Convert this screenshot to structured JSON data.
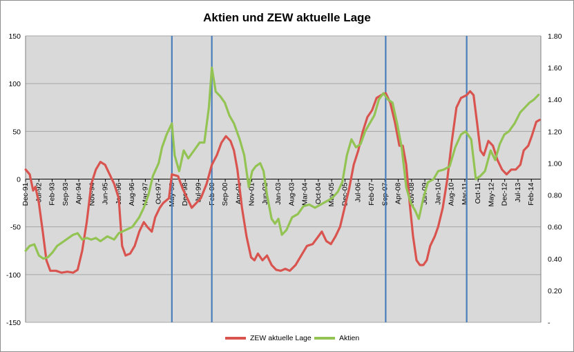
{
  "chart_data": {
    "type": "line",
    "title": "Aktien und ZEW aktuelle Lage",
    "xlabel": "",
    "ylabel": "",
    "y_left": {
      "range": [
        -150,
        150
      ],
      "ticks": [
        150,
        100,
        50,
        0,
        -50,
        -100,
        -150
      ],
      "tick_labels": [
        "150",
        "100",
        "50",
        "0",
        "-50",
        "-100",
        "-150"
      ]
    },
    "y_right": {
      "range": [
        0,
        1.8
      ],
      "ticks": [
        1.8,
        1.6,
        1.4,
        1.2,
        1.0,
        0.8,
        0.6,
        0.4,
        0.2,
        0
      ],
      "tick_labels": [
        "1.80",
        "1.60",
        "1.40",
        "1.20",
        "1.00",
        "0.80",
        "0.60",
        "0.40",
        "0.20",
        "-"
      ]
    },
    "x_range": [
      1991.917,
      2014.5
    ],
    "x_tick_labels": [
      {
        "label": "Dec-91",
        "x": 1991.917
      },
      {
        "label": "Jul-92",
        "x": 1992.5
      },
      {
        "label": "Feb-93",
        "x": 1993.083
      },
      {
        "label": "Sep-93",
        "x": 1993.667
      },
      {
        "label": "Apr-94",
        "x": 1994.25
      },
      {
        "label": "Nov-94",
        "x": 1994.833
      },
      {
        "label": "Jun-95",
        "x": 1995.417
      },
      {
        "label": "Jan-96",
        "x": 1996.0
      },
      {
        "label": "Aug-96",
        "x": 1996.583
      },
      {
        "label": "Mar-97",
        "x": 1997.167
      },
      {
        "label": "Oct-97",
        "x": 1997.75
      },
      {
        "label": "May-98",
        "x": 1998.333
      },
      {
        "label": "Dec-98",
        "x": 1998.917
      },
      {
        "label": "Jul-99",
        "x": 1999.5
      },
      {
        "label": "Feb-00",
        "x": 2000.083
      },
      {
        "label": "Sep-00",
        "x": 2000.667
      },
      {
        "label": "Apr-01",
        "x": 2001.25
      },
      {
        "label": "Nov-01",
        "x": 2001.833
      },
      {
        "label": "Jun-02",
        "x": 2002.417
      },
      {
        "label": "Jan-03",
        "x": 2003.0
      },
      {
        "label": "Aug-03",
        "x": 2003.583
      },
      {
        "label": "Mar-04",
        "x": 2004.167
      },
      {
        "label": "Oct-04",
        "x": 2004.75
      },
      {
        "label": "May-05",
        "x": 2005.333
      },
      {
        "label": "Dec-05",
        "x": 2005.917
      },
      {
        "label": "Jul-06",
        "x": 2006.5
      },
      {
        "label": "Feb-07",
        "x": 2007.083
      },
      {
        "label": "Sep-07",
        "x": 2007.667
      },
      {
        "label": "Apr-08",
        "x": 2008.25
      },
      {
        "label": "Nov-08",
        "x": 2008.833
      },
      {
        "label": "Jun-09",
        "x": 2009.417
      },
      {
        "label": "Jan-10",
        "x": 2010.0
      },
      {
        "label": "Aug-10",
        "x": 2010.583
      },
      {
        "label": "Mar-11",
        "x": 2011.167
      },
      {
        "label": "Oct-11",
        "x": 2011.75
      },
      {
        "label": "May-12",
        "x": 2012.333
      },
      {
        "label": "Dec-12",
        "x": 2012.917
      },
      {
        "label": "Jul-13",
        "x": 2013.5
      },
      {
        "label": "Feb-14",
        "x": 2014.083
      }
    ],
    "vertical_markers": [
      1998.33,
      2000.08,
      2007.7,
      2011.25
    ],
    "marker_color": "#4a7ebb",
    "grid": true,
    "legend": "bottom",
    "series": [
      {
        "name": "ZEW aktuelle Lage",
        "axis": "left",
        "color": "#d9534f",
        "points": [
          [
            1991.92,
            10
          ],
          [
            1992.1,
            5
          ],
          [
            1992.25,
            -12
          ],
          [
            1992.35,
            -8
          ],
          [
            1992.5,
            -25
          ],
          [
            1992.67,
            -55
          ],
          [
            1992.83,
            -85
          ],
          [
            1993.0,
            -96
          ],
          [
            1993.25,
            -96
          ],
          [
            1993.5,
            -98
          ],
          [
            1993.75,
            -97
          ],
          [
            1994.0,
            -98
          ],
          [
            1994.2,
            -95
          ],
          [
            1994.4,
            -75
          ],
          [
            1994.6,
            -45
          ],
          [
            1994.8,
            -5
          ],
          [
            1995.0,
            10
          ],
          [
            1995.2,
            18
          ],
          [
            1995.4,
            15
          ],
          [
            1995.6,
            5
          ],
          [
            1995.8,
            -5
          ],
          [
            1996.0,
            -20
          ],
          [
            1996.15,
            -70
          ],
          [
            1996.3,
            -80
          ],
          [
            1996.5,
            -78
          ],
          [
            1996.7,
            -70
          ],
          [
            1996.9,
            -55
          ],
          [
            1997.1,
            -45
          ],
          [
            1997.25,
            -50
          ],
          [
            1997.45,
            -55
          ],
          [
            1997.6,
            -40
          ],
          [
            1997.8,
            -30
          ],
          [
            1997.95,
            -25
          ],
          [
            1998.2,
            -20
          ],
          [
            1998.33,
            5
          ],
          [
            1998.6,
            3
          ],
          [
            1998.8,
            -10
          ],
          [
            1999.0,
            -20
          ],
          [
            1999.2,
            -30
          ],
          [
            1999.4,
            -25
          ],
          [
            1999.6,
            -20
          ],
          [
            1999.85,
            -5
          ],
          [
            2000.08,
            15
          ],
          [
            2000.3,
            25
          ],
          [
            2000.5,
            38
          ],
          [
            2000.7,
            45
          ],
          [
            2000.9,
            40
          ],
          [
            2001.05,
            30
          ],
          [
            2001.2,
            10
          ],
          [
            2001.4,
            -30
          ],
          [
            2001.6,
            -60
          ],
          [
            2001.8,
            -82
          ],
          [
            2001.95,
            -85
          ],
          [
            2002.1,
            -78
          ],
          [
            2002.3,
            -85
          ],
          [
            2002.5,
            -80
          ],
          [
            2002.7,
            -90
          ],
          [
            2002.9,
            -95
          ],
          [
            2003.1,
            -96
          ],
          [
            2003.3,
            -94
          ],
          [
            2003.5,
            -96
          ],
          [
            2003.75,
            -90
          ],
          [
            2004.0,
            -80
          ],
          [
            2004.25,
            -70
          ],
          [
            2004.5,
            -68
          ],
          [
            2004.75,
            -60
          ],
          [
            2004.9,
            -55
          ],
          [
            2005.1,
            -65
          ],
          [
            2005.3,
            -68
          ],
          [
            2005.5,
            -60
          ],
          [
            2005.7,
            -50
          ],
          [
            2005.9,
            -30
          ],
          [
            2006.1,
            -10
          ],
          [
            2006.3,
            15
          ],
          [
            2006.5,
            30
          ],
          [
            2006.7,
            50
          ],
          [
            2006.9,
            65
          ],
          [
            2007.1,
            72
          ],
          [
            2007.3,
            85
          ],
          [
            2007.5,
            88
          ],
          [
            2007.7,
            90
          ],
          [
            2007.9,
            80
          ],
          [
            2008.1,
            60
          ],
          [
            2008.3,
            35
          ],
          [
            2008.45,
            35
          ],
          [
            2008.6,
            15
          ],
          [
            2008.75,
            -25
          ],
          [
            2008.9,
            -60
          ],
          [
            2009.05,
            -85
          ],
          [
            2009.2,
            -90
          ],
          [
            2009.35,
            -90
          ],
          [
            2009.5,
            -85
          ],
          [
            2009.65,
            -70
          ],
          [
            2009.85,
            -60
          ],
          [
            2010.0,
            -50
          ],
          [
            2010.2,
            -30
          ],
          [
            2010.4,
            0
          ],
          [
            2010.6,
            40
          ],
          [
            2010.8,
            75
          ],
          [
            2011.0,
            85
          ],
          [
            2011.25,
            88
          ],
          [
            2011.4,
            92
          ],
          [
            2011.55,
            88
          ],
          [
            2011.7,
            60
          ],
          [
            2011.85,
            30
          ],
          [
            2012.0,
            25
          ],
          [
            2012.2,
            40
          ],
          [
            2012.4,
            35
          ],
          [
            2012.6,
            20
          ],
          [
            2012.8,
            10
          ],
          [
            2013.0,
            5
          ],
          [
            2013.2,
            10
          ],
          [
            2013.4,
            10
          ],
          [
            2013.6,
            15
          ],
          [
            2013.75,
            30
          ],
          [
            2013.95,
            35
          ],
          [
            2014.1,
            45
          ],
          [
            2014.3,
            60
          ],
          [
            2014.45,
            62
          ]
        ]
      },
      {
        "name": "Aktien",
        "axis": "right",
        "color": "#92c353",
        "points": [
          [
            1991.92,
            0.45
          ],
          [
            1992.1,
            0.48
          ],
          [
            1992.3,
            0.49
          ],
          [
            1992.5,
            0.42
          ],
          [
            1992.7,
            0.4
          ],
          [
            1992.9,
            0.41
          ],
          [
            1993.1,
            0.44
          ],
          [
            1993.3,
            0.48
          ],
          [
            1993.6,
            0.51
          ],
          [
            1993.8,
            0.53
          ],
          [
            1994.0,
            0.55
          ],
          [
            1994.2,
            0.56
          ],
          [
            1994.4,
            0.52
          ],
          [
            1994.6,
            0.53
          ],
          [
            1994.8,
            0.52
          ],
          [
            1995.0,
            0.53
          ],
          [
            1995.2,
            0.51
          ],
          [
            1995.5,
            0.54
          ],
          [
            1995.8,
            0.52
          ],
          [
            1996.0,
            0.56
          ],
          [
            1996.3,
            0.58
          ],
          [
            1996.6,
            0.6
          ],
          [
            1996.9,
            0.66
          ],
          [
            1997.1,
            0.72
          ],
          [
            1997.3,
            0.8
          ],
          [
            1997.5,
            0.92
          ],
          [
            1997.75,
            1.0
          ],
          [
            1997.9,
            1.1
          ],
          [
            1998.1,
            1.18
          ],
          [
            1998.33,
            1.25
          ],
          [
            1998.45,
            1.05
          ],
          [
            1998.65,
            0.95
          ],
          [
            1998.85,
            1.08
          ],
          [
            1999.05,
            1.03
          ],
          [
            1999.3,
            1.08
          ],
          [
            1999.55,
            1.13
          ],
          [
            1999.75,
            1.13
          ],
          [
            1999.95,
            1.35
          ],
          [
            2000.08,
            1.6
          ],
          [
            2000.25,
            1.45
          ],
          [
            2000.45,
            1.42
          ],
          [
            2000.65,
            1.38
          ],
          [
            2000.85,
            1.3
          ],
          [
            2001.05,
            1.25
          ],
          [
            2001.3,
            1.15
          ],
          [
            2001.5,
            1.05
          ],
          [
            2001.7,
            0.85
          ],
          [
            2001.85,
            0.95
          ],
          [
            2002.0,
            0.98
          ],
          [
            2002.2,
            1.0
          ],
          [
            2002.35,
            0.95
          ],
          [
            2002.5,
            0.8
          ],
          [
            2002.7,
            0.65
          ],
          [
            2002.85,
            0.62
          ],
          [
            2003.0,
            0.65
          ],
          [
            2003.15,
            0.55
          ],
          [
            2003.35,
            0.58
          ],
          [
            2003.6,
            0.66
          ],
          [
            2003.85,
            0.68
          ],
          [
            2004.1,
            0.73
          ],
          [
            2004.35,
            0.74
          ],
          [
            2004.6,
            0.72
          ],
          [
            2004.85,
            0.74
          ],
          [
            2005.1,
            0.76
          ],
          [
            2005.35,
            0.78
          ],
          [
            2005.6,
            0.82
          ],
          [
            2005.8,
            0.88
          ],
          [
            2006.0,
            1.05
          ],
          [
            2006.2,
            1.15
          ],
          [
            2006.4,
            1.1
          ],
          [
            2006.6,
            1.12
          ],
          [
            2006.8,
            1.2
          ],
          [
            2007.0,
            1.25
          ],
          [
            2007.2,
            1.3
          ],
          [
            2007.4,
            1.4
          ],
          [
            2007.6,
            1.44
          ],
          [
            2007.8,
            1.4
          ],
          [
            2008.0,
            1.38
          ],
          [
            2008.2,
            1.25
          ],
          [
            2008.4,
            1.1
          ],
          [
            2008.6,
            0.85
          ],
          [
            2008.8,
            0.75
          ],
          [
            2009.0,
            0.7
          ],
          [
            2009.15,
            0.65
          ],
          [
            2009.35,
            0.78
          ],
          [
            2009.55,
            0.88
          ],
          [
            2009.8,
            0.9
          ],
          [
            2010.0,
            0.95
          ],
          [
            2010.25,
            0.96
          ],
          [
            2010.5,
            0.98
          ],
          [
            2010.75,
            1.1
          ],
          [
            2011.0,
            1.18
          ],
          [
            2011.2,
            1.2
          ],
          [
            2011.45,
            1.15
          ],
          [
            2011.65,
            0.9
          ],
          [
            2011.85,
            0.92
          ],
          [
            2012.05,
            0.95
          ],
          [
            2012.3,
            1.08
          ],
          [
            2012.5,
            1.02
          ],
          [
            2012.7,
            1.12
          ],
          [
            2012.9,
            1.18
          ],
          [
            2013.1,
            1.2
          ],
          [
            2013.35,
            1.25
          ],
          [
            2013.6,
            1.32
          ],
          [
            2013.8,
            1.35
          ],
          [
            2014.0,
            1.38
          ],
          [
            2014.2,
            1.4
          ],
          [
            2014.4,
            1.43
          ]
        ]
      }
    ]
  }
}
